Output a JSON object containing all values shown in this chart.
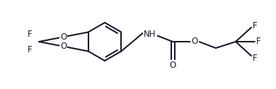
{
  "bg_color": "#ffffff",
  "line_color": "#1a1a2e",
  "line_width": 1.5,
  "font_size": 8.5,
  "figsize": [
    3.9,
    1.26
  ],
  "dpi": 100,
  "xlim": [
    0,
    390
  ],
  "ylim": [
    0,
    126
  ]
}
